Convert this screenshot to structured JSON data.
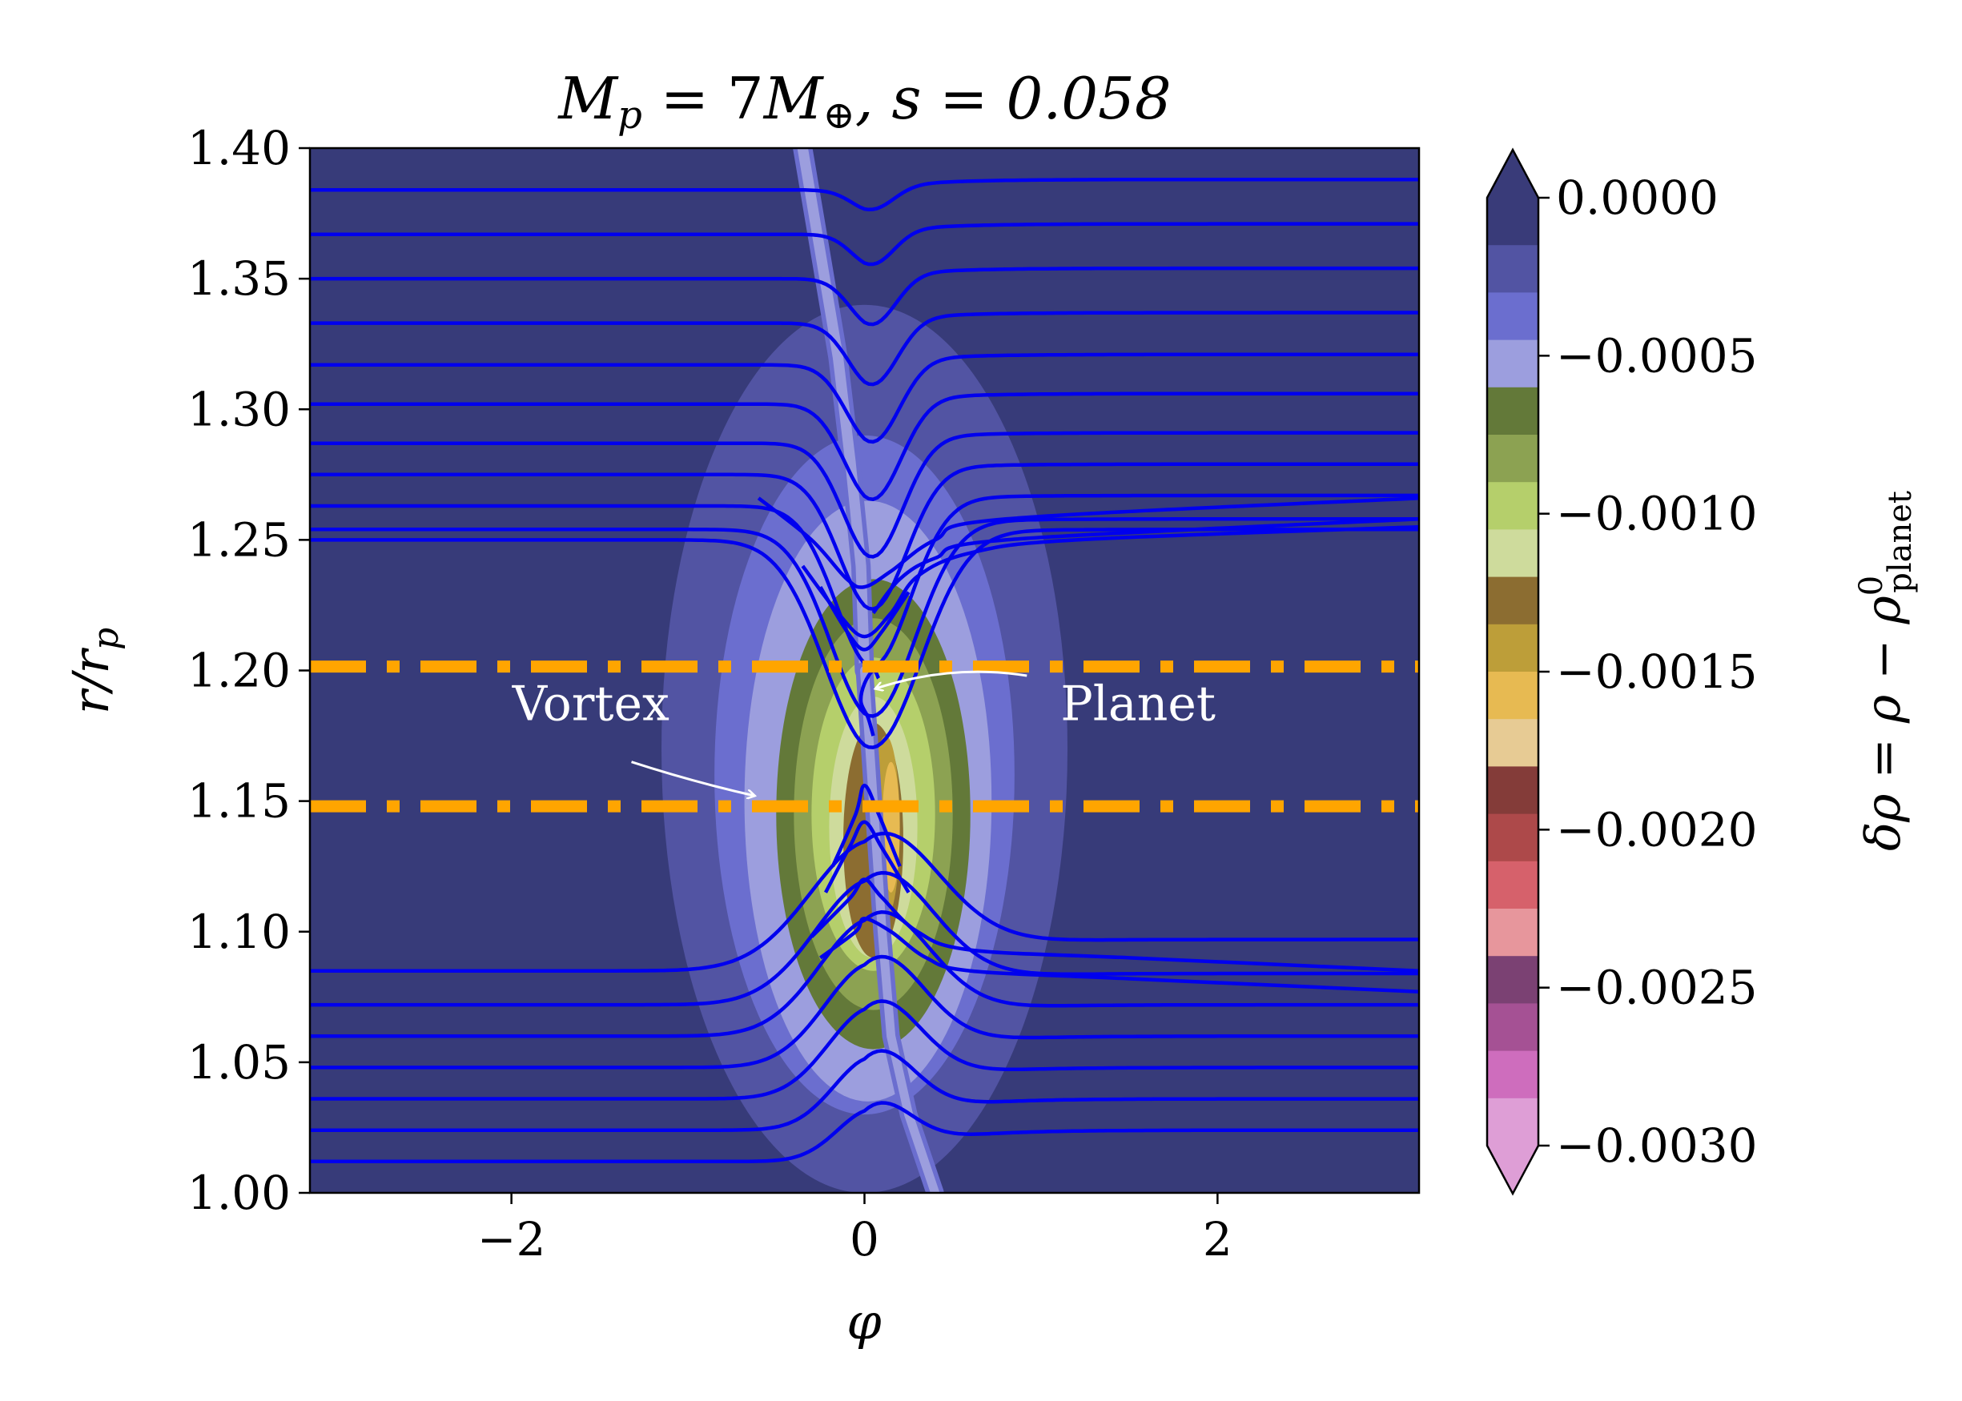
{
  "chart_data": {
    "type": "heatmap",
    "title": "M_p = 7M_⊕ , s = 0.058",
    "title_parts": {
      "lhs": "M",
      "lhs_sub": "p",
      "eq1": " = 7",
      "m": "M",
      "m_sub": "⊕",
      "rest": ", s = 0.058"
    },
    "xlabel": "φ",
    "ylabel": {
      "main": "r/r",
      "sub": "p"
    },
    "xlim": [
      -3.1416,
      3.1416
    ],
    "ylim": [
      1.0,
      1.4
    ],
    "x_ticks": [
      -2,
      0,
      2
    ],
    "x_tick_labels": [
      "−2",
      "0",
      "2"
    ],
    "y_ticks": [
      1.0,
      1.05,
      1.1,
      1.15,
      1.2,
      1.25,
      1.3,
      1.35,
      1.4
    ],
    "y_tick_labels": [
      "1.00",
      "1.05",
      "1.10",
      "1.15",
      "1.20",
      "1.25",
      "1.30",
      "1.35",
      "1.40"
    ],
    "background_color": "#373b79",
    "colorbar": {
      "label": "δρ = ρ − ρ⁰_planet",
      "label_parts": {
        "main": "δρ = ρ − ρ",
        "sup": "0",
        "sub": "planet"
      },
      "vmin": -0.003,
      "vmax": 0.0,
      "ticks": [
        0.0,
        -0.0005,
        -0.001,
        -0.0015,
        -0.002,
        -0.0025,
        -0.003
      ],
      "tick_labels": [
        "0.0000",
        "−0.0005",
        "−0.0010",
        "−0.0015",
        "−0.0020",
        "−0.0025",
        "−0.0030"
      ],
      "extend": "both",
      "colors": [
        "#393b79",
        "#5254a3",
        "#6b6ecf",
        "#9c9ede",
        "#637939",
        "#8ca252",
        "#b5cf6b",
        "#cedb9c",
        "#8c6d31",
        "#bd9e39",
        "#e7ba52",
        "#e7cb94",
        "#843c39",
        "#ad494a",
        "#d6616b",
        "#e7969c",
        "#7b4173",
        "#a55194",
        "#ce6dbd",
        "#de9ed6"
      ]
    },
    "density_regions": [
      {
        "level": -0.0003,
        "color": "#5254a3",
        "cx": 0.0,
        "cy": 1.17,
        "rx": 1.15,
        "ry": 0.17
      },
      {
        "level": -0.0004,
        "color": "#6b6ecf",
        "cx": 0.0,
        "cy": 1.16,
        "rx": 0.85,
        "ry": 0.13
      },
      {
        "level": -0.0005,
        "color": "#9c9ede",
        "cx": 0.02,
        "cy": 1.15,
        "rx": 0.7,
        "ry": 0.115
      },
      {
        "level": -0.0006,
        "color": "#637939",
        "cx": 0.05,
        "cy": 1.145,
        "rx": 0.55,
        "ry": 0.09
      },
      {
        "level": -0.0007,
        "color": "#8ca252",
        "cx": 0.05,
        "cy": 1.145,
        "rx": 0.45,
        "ry": 0.075
      },
      {
        "level": -0.0008,
        "color": "#b5cf6b",
        "cx": 0.05,
        "cy": 1.145,
        "rx": 0.35,
        "ry": 0.06
      },
      {
        "level": -0.0009,
        "color": "#cedb9c",
        "cx": 0.05,
        "cy": 1.14,
        "rx": 0.25,
        "ry": 0.05
      },
      {
        "level": -0.0011,
        "color": "#8c6d31",
        "cx": 0.05,
        "cy": 1.135,
        "rx": 0.17,
        "ry": 0.045
      },
      {
        "level": -0.0013,
        "color": "#bd9e39",
        "cx": 0.12,
        "cy": 1.14,
        "rx": 0.08,
        "ry": 0.035
      },
      {
        "level": -0.0014,
        "color": "#e7ba52",
        "cx": 0.15,
        "cy": 1.14,
        "rx": 0.05,
        "ry": 0.025
      }
    ],
    "spiral_wake": [
      {
        "color": "#6b6ecf",
        "width": 0.11,
        "points": [
          [
            -0.35,
            1.4
          ],
          [
            -0.25,
            1.36
          ],
          [
            -0.15,
            1.32
          ],
          [
            -0.08,
            1.28
          ],
          [
            -0.02,
            1.24
          ],
          [
            0.0,
            1.2
          ]
        ]
      },
      {
        "color": "#9c9ede",
        "width": 0.06,
        "points": [
          [
            -0.35,
            1.4
          ],
          [
            -0.25,
            1.36
          ],
          [
            -0.15,
            1.32
          ],
          [
            -0.08,
            1.28
          ],
          [
            -0.02,
            1.24
          ],
          [
            0.0,
            1.2
          ]
        ]
      },
      {
        "color": "#6b6ecf",
        "width": 0.1,
        "points": [
          [
            0.0,
            1.2
          ],
          [
            0.05,
            1.15
          ],
          [
            0.1,
            1.1
          ],
          [
            0.15,
            1.06
          ],
          [
            0.25,
            1.03
          ],
          [
            0.4,
            1.0
          ]
        ]
      },
      {
        "color": "#9c9ede",
        "width": 0.05,
        "points": [
          [
            0.0,
            1.2
          ],
          [
            0.05,
            1.15
          ],
          [
            0.1,
            1.1
          ],
          [
            0.15,
            1.06
          ],
          [
            0.25,
            1.03
          ],
          [
            0.4,
            1.0
          ]
        ]
      }
    ],
    "streamline_color": "#0000ee",
    "streamlines": [
      {
        "r0": 1.384,
        "dip": 0.008,
        "w": 0.12,
        "slope": 0.0
      },
      {
        "r0": 1.367,
        "dip": 0.012,
        "w": 0.12,
        "slope": 0.0
      },
      {
        "r0": 1.35,
        "dip": 0.018,
        "w": 0.13,
        "slope": 0.0
      },
      {
        "r0": 1.333,
        "dip": 0.024,
        "w": 0.14,
        "slope": 0.0
      },
      {
        "r0": 1.317,
        "dip": 0.03,
        "w": 0.15,
        "slope": 0.0
      },
      {
        "r0": 1.302,
        "dip": 0.037,
        "w": 0.16,
        "slope": 0.0
      },
      {
        "r0": 1.287,
        "dip": 0.044,
        "w": 0.17,
        "slope": 0.0
      },
      {
        "r0": 1.275,
        "dip": 0.052,
        "w": 0.19,
        "slope": 0.0
      },
      {
        "r0": 1.263,
        "dip": 0.062,
        "w": 0.21,
        "slope": 0.0
      },
      {
        "r0": 1.254,
        "dip": 0.072,
        "w": 0.24,
        "slope": 0.0
      },
      {
        "r0": 1.25,
        "dip": 0.08,
        "w": 0.27,
        "slope": 0.0
      },
      {
        "r0": 1.085,
        "dip": -0.05,
        "w": 0.35,
        "slope": 0.0
      },
      {
        "r0": 1.072,
        "dip": -0.048,
        "w": 0.32,
        "slope": 0.0
      },
      {
        "r0": 1.06,
        "dip": -0.045,
        "w": 0.3,
        "slope": 0.0
      },
      {
        "r0": 1.048,
        "dip": -0.04,
        "w": 0.27,
        "slope": 0.0
      },
      {
        "r0": 1.036,
        "dip": -0.035,
        "w": 0.25,
        "slope": 0.0
      },
      {
        "r0": 1.024,
        "dip": -0.028,
        "w": 0.22,
        "slope": 0.0
      },
      {
        "r0": 1.012,
        "dip": -0.02,
        "w": 0.2,
        "slope": 0.0
      }
    ],
    "horseshoe_lines": [
      {
        "points": [
          [
            -0.6,
            1.266
          ],
          [
            -0.3,
            1.25
          ],
          [
            -0.1,
            1.235
          ],
          [
            0.0,
            1.232
          ],
          [
            0.15,
            1.238
          ],
          [
            0.4,
            1.25
          ],
          [
            0.8,
            1.258
          ],
          [
            3.1416,
            1.266
          ]
        ]
      },
      {
        "points": [
          [
            0.05,
            1.222
          ],
          [
            0.2,
            1.235
          ],
          [
            0.4,
            1.243
          ],
          [
            0.8,
            1.25
          ],
          [
            3.1416,
            1.258
          ]
        ]
      },
      {
        "points": [
          [
            -0.35,
            1.24
          ],
          [
            -0.15,
            1.222
          ],
          [
            0.0,
            1.213
          ],
          [
            0.15,
            1.222
          ],
          [
            0.3,
            1.236
          ],
          [
            0.6,
            1.245
          ],
          [
            1.2,
            1.25
          ],
          [
            3.1416,
            1.255
          ]
        ]
      },
      {
        "points": [
          [
            -0.25,
            1.232
          ],
          [
            -0.1,
            1.215
          ],
          [
            0.0,
            1.208
          ],
          [
            0.1,
            1.215
          ],
          [
            0.25,
            1.23
          ]
        ]
      },
      {
        "points": [
          [
            -0.25,
            1.09
          ],
          [
            -0.05,
            1.1
          ],
          [
            0.0,
            1.105
          ],
          [
            0.15,
            1.1
          ],
          [
            0.35,
            1.09
          ],
          [
            0.6,
            1.085
          ],
          [
            1.5,
            1.082
          ],
          [
            3.1416,
            1.077
          ]
        ]
      },
      {
        "points": [
          [
            -0.3,
            1.098
          ],
          [
            -0.08,
            1.113
          ],
          [
            0.0,
            1.12
          ],
          [
            0.1,
            1.113
          ],
          [
            0.3,
            1.1
          ],
          [
            0.6,
            1.093
          ],
          [
            1.5,
            1.09
          ],
          [
            3.1416,
            1.085
          ]
        ]
      },
      {
        "points": [
          [
            -0.22,
            1.115
          ],
          [
            -0.08,
            1.133
          ],
          [
            0.0,
            1.142
          ],
          [
            0.1,
            1.132
          ],
          [
            0.25,
            1.115
          ]
        ]
      },
      {
        "points": [
          [
            -0.18,
            1.125
          ],
          [
            -0.05,
            1.145
          ],
          [
            0.0,
            1.156
          ],
          [
            0.08,
            1.145
          ],
          [
            0.2,
            1.125
          ]
        ]
      },
      {
        "points": [
          [
            0.05,
            1.175
          ],
          [
            0.02,
            1.182
          ],
          [
            -0.02,
            1.188
          ],
          [
            0.0,
            1.195
          ],
          [
            0.05,
            1.2
          ],
          [
            0.08,
            1.197
          ]
        ]
      }
    ],
    "guide_lines": [
      {
        "y": 1.2015,
        "color": "#ffa500",
        "style": "dash-dot"
      },
      {
        "y": 1.148,
        "color": "#ffa500",
        "style": "dash-dot"
      }
    ],
    "annotations": [
      {
        "text": "Vortex",
        "text_x": -1.55,
        "text_y": 1.181,
        "arrow_from": [
          -1.32,
          1.165
        ],
        "arrow_to": [
          -0.62,
          1.152
        ],
        "color": "#ffffff"
      },
      {
        "text": "Planet",
        "text_x": 1.55,
        "text_y": 1.181,
        "arrow_from": [
          0.92,
          1.198
        ],
        "arrow_to": [
          0.06,
          1.193
        ],
        "color": "#ffffff"
      }
    ]
  }
}
